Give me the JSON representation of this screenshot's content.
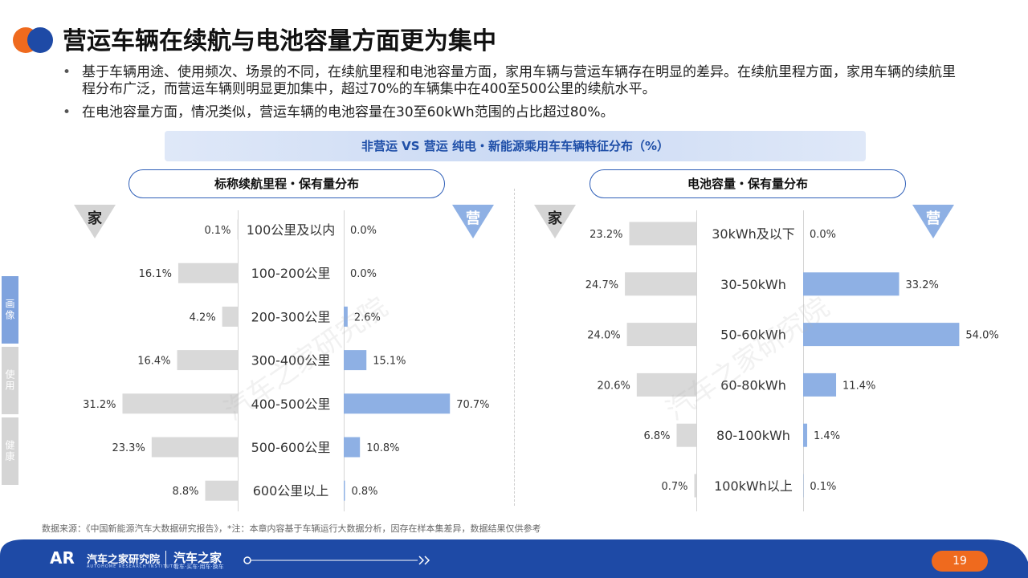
{
  "title": "营运车辆在续航与电池容量方面更为集中",
  "bullets": [
    "基于车辆用途、使用频次、场景的不同，在续航里程和电池容量方面，家用车辆与营运车辆存在明显的差异。在续航里程方面，家用车辆的续航里程分布广泛，而营运车辆则明显更加集中，超过70%的车辆集中在400至500公里的续航水平。",
    "在电池容量方面，情况类似，营运车辆的电池容量在30至60kWh范围的占比超过80%。"
  ],
  "banner": "非营运 VS 营运 纯电・新能源乘用车车辆特征分布（%）",
  "side_tabs": [
    "画像",
    "使用",
    "健康"
  ],
  "marker_left": "家",
  "marker_right": "营",
  "watermark": "汽车之家研究院",
  "colors": {
    "private": "#d9d9d9",
    "commercial": "#8eb0e4",
    "accent": "#2f5fb8",
    "footer": "#1e4aa6",
    "orange": "#ef6a1e"
  },
  "chart_data": [
    {
      "type": "bar",
      "orientation": "horizontal-butterfly",
      "title": "标称续航里程・保有量分布",
      "categories": [
        "100公里及以内",
        "100-200公里",
        "200-300公里",
        "300-400公里",
        "400-500公里",
        "500-600公里",
        "600公里以上"
      ],
      "series": [
        {
          "name": "家",
          "values": [
            0.1,
            16.1,
            4.2,
            16.4,
            31.2,
            23.3,
            8.8
          ],
          "labels": [
            "0.1%",
            "16.1%",
            "4.2%",
            "16.4%",
            "31.2%",
            "23.3%",
            "8.8%"
          ]
        },
        {
          "name": "营",
          "values": [
            0.0,
            0.0,
            2.6,
            15.1,
            70.7,
            10.8,
            0.8
          ],
          "labels": [
            "0.0%",
            "0.0%",
            "2.6%",
            "15.1%",
            "70.7%",
            "10.8%",
            "0.8%"
          ]
        }
      ]
    },
    {
      "type": "bar",
      "orientation": "horizontal-butterfly",
      "title": "电池容量・保有量分布",
      "categories": [
        "30kWh及以下",
        "30-50kWh",
        "50-60kWh",
        "60-80kWh",
        "80-100kWh",
        "100kWh以上"
      ],
      "series": [
        {
          "name": "家",
          "values": [
            23.2,
            24.7,
            24.0,
            20.6,
            6.8,
            0.7
          ],
          "labels": [
            "23.2%",
            "24.7%",
            "24.0%",
            "20.6%",
            "6.8%",
            "0.7%"
          ]
        },
        {
          "name": "营",
          "values": [
            0.0,
            33.2,
            54.0,
            11.4,
            1.4,
            0.1
          ],
          "labels": [
            "0.0%",
            "33.2%",
            "54.0%",
            "11.4%",
            "1.4%",
            "0.1%"
          ]
        }
      ]
    }
  ],
  "source": "数据来源：《中国新能源汽车大数据研究报告》，*注：本章内容基于车辆运行大数据分析，因存在样本集差异，数据结果仅供参考",
  "footer": {
    "logo_text": "汽车之家研究院",
    "logo_sub": "AUTOHOME RESEARCH INSTITUTE",
    "brand": "汽车之家",
    "brand_sub": "看车·买车·用车·换车",
    "page_number": "19"
  }
}
